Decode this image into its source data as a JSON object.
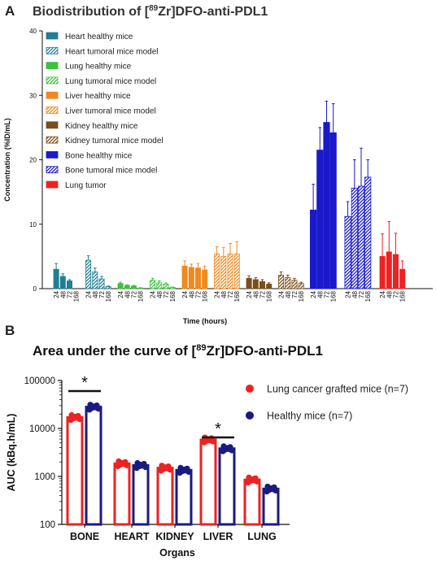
{
  "panel_a": {
    "letter": "A",
    "title_main": "Biodistribution  of [",
    "title_sup": "89",
    "title_rest": "Zr]DFO-anti-PDL1"
  },
  "panel_b": {
    "letter": "B",
    "title_main": "Area under the curve of [",
    "title_sup": "89",
    "title_rest": "Zr]DFO-anti-PDL1"
  },
  "colors": {
    "heart": "#1f7f95",
    "lung": "#3cc13c",
    "liver": "#f0891e",
    "kidney": "#7a4e1a",
    "bone": "#1a1acc",
    "lung_tumor": "#ee2222",
    "cancer": "#ee2222",
    "healthy": "#1a1a80"
  },
  "chart_data": [
    {
      "type": "bar",
      "title": "Biodistribution  of [89Zr]DFO-anti-PDL1",
      "xlabel": "Time (hours)",
      "ylabel": "Concentration (%ID/mL)",
      "ylim": [
        0,
        40
      ],
      "yticks": [
        "0",
        "10",
        "20",
        "30",
        "40"
      ],
      "timepoints": [
        "24",
        "48",
        "72",
        "168"
      ],
      "legend_position": "top-left",
      "series": [
        {
          "name": "Heart healthy mice",
          "organ": "heart",
          "pattern": "solid",
          "values": [
            3.0,
            1.9,
            1.2,
            null
          ],
          "errors": [
            0.9,
            0.4,
            0.2,
            null
          ]
        },
        {
          "name": "Heart tumoral mice model",
          "organ": "heart",
          "pattern": "hatched",
          "values": [
            4.4,
            2.6,
            1.5,
            0.3
          ],
          "errors": [
            0.7,
            0.6,
            0.4,
            0.1
          ]
        },
        {
          "name": "Lung healthy mice",
          "organ": "lung",
          "pattern": "solid",
          "values": [
            0.8,
            0.5,
            0.4,
            0.1
          ],
          "errors": [
            0.2,
            0.1,
            0.1,
            0.05
          ]
        },
        {
          "name": "Lung tumoral mice model",
          "organ": "lung",
          "pattern": "hatched",
          "values": [
            1.3,
            0.9,
            0.7,
            0.2
          ],
          "errors": [
            0.3,
            0.3,
            0.2,
            0.05
          ]
        },
        {
          "name": "Liver healthy mice",
          "organ": "liver",
          "pattern": "solid",
          "values": [
            3.5,
            3.3,
            3.2,
            2.9
          ],
          "errors": [
            0.8,
            0.5,
            0.7,
            0.6
          ]
        },
        {
          "name": "Liver tumoral mice model",
          "organ": "liver",
          "pattern": "hatched",
          "values": [
            5.4,
            5.0,
            5.4,
            5.4
          ],
          "errors": [
            1.1,
            1.4,
            1.6,
            1.9
          ]
        },
        {
          "name": "Kidney healthy mice",
          "organ": "kidney",
          "pattern": "solid",
          "values": [
            1.6,
            1.4,
            1.1,
            0.7
          ],
          "errors": [
            0.4,
            0.3,
            0.3,
            0.2
          ]
        },
        {
          "name": "Kidney tumoral mice model",
          "organ": "kidney",
          "pattern": "hatched",
          "values": [
            2.1,
            1.7,
            1.3,
            0.8
          ],
          "errors": [
            0.5,
            0.4,
            0.3,
            0.2
          ]
        },
        {
          "name": "Bone healthy mice",
          "organ": "bone",
          "pattern": "solid",
          "values": [
            12.2,
            21.5,
            25.8,
            24.2
          ],
          "errors": [
            4.0,
            3.5,
            3.3,
            4.5
          ]
        },
        {
          "name": "Bone tumoral mice model",
          "organ": "bone",
          "pattern": "hatched",
          "values": [
            11.2,
            15.6,
            15.9,
            17.3
          ],
          "errors": [
            2.3,
            4.4,
            5.9,
            2.7
          ]
        },
        {
          "name": "Lung tumor",
          "organ": "lung_tumor",
          "pattern": "solid",
          "values": [
            5.0,
            5.7,
            5.3,
            3.0
          ],
          "errors": [
            3.5,
            4.7,
            3.3,
            1.3
          ]
        }
      ]
    },
    {
      "type": "bar",
      "title": "Area under the curve of [89Zr]DFO-anti-PDL1",
      "xlabel": "Organs",
      "ylabel": "AUC (kBq.h/mL)",
      "yscale": "log",
      "ylim": [
        100,
        100000
      ],
      "yticks": [
        "100",
        "1000",
        "10000",
        "100000"
      ],
      "categories": [
        "BONE",
        "HEART",
        "KIDNEY",
        "LIVER",
        "LUNG"
      ],
      "legend_position": "top-right",
      "significance": [
        {
          "category": "BONE",
          "label": "*"
        },
        {
          "category": "LIVER",
          "label": "*"
        }
      ],
      "series": [
        {
          "name": "Lung cancer grafted mice (n=7)",
          "values": [
            17000,
            1850,
            1500,
            5800,
            850
          ]
        },
        {
          "name": "Healthy mice (n=7)",
          "values": [
            28000,
            1700,
            1350,
            3800,
            550
          ]
        }
      ]
    }
  ]
}
